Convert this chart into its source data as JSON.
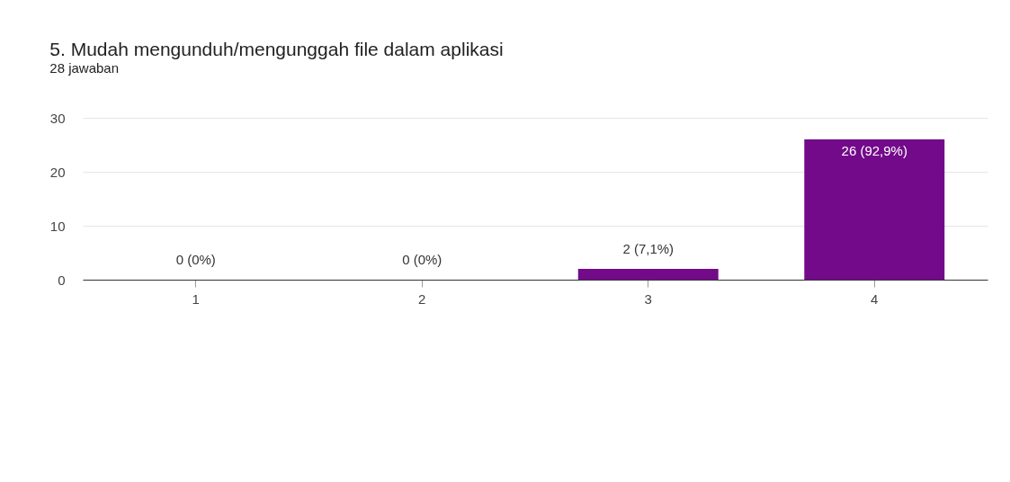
{
  "chart_data": {
    "type": "bar",
    "title": "5. Mudah mengunduh/mengunggah file dalam aplikasi",
    "subtitle": "28 jawaban",
    "categories": [
      "1",
      "2",
      "3",
      "4"
    ],
    "values": [
      0,
      0,
      2,
      26
    ],
    "value_labels": [
      "0 (0%)",
      "0 (0%)",
      "2 (7,1%)",
      "26 (92,9%)"
    ],
    "color": "#730a8a",
    "ylim": [
      0,
      30
    ],
    "yticks": [
      0,
      10,
      20,
      30
    ],
    "grid": "y"
  }
}
